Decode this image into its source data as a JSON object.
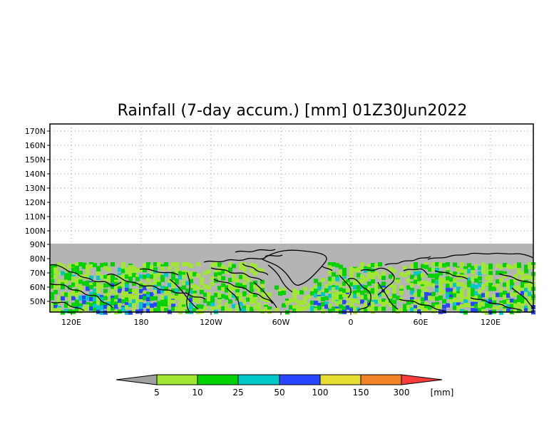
{
  "title": "Rainfall (7-day accum.) [mm] 01Z30Jun2022",
  "lat_labels": [
    "170N",
    "160N",
    "150N",
    "140N",
    "130N",
    "120N",
    "110N",
    "100N",
    "90N",
    "80N",
    "70N",
    "60N",
    "50N"
  ],
  "lon_labels": [
    "120E",
    "180",
    "120W",
    "60W",
    "0",
    "60E",
    "120E"
  ],
  "colorbar": {
    "thresholds": [
      "5",
      "10",
      "25",
      "50",
      "100",
      "150",
      "300"
    ],
    "units": "[mm]",
    "colors": [
      "#a0a0a0",
      "#a0e632",
      "#00d200",
      "#00c8c8",
      "#2846ff",
      "#e6dc32",
      "#f08228",
      "#fa3c3c"
    ]
  },
  "no_data_color": "#b4b4b4"
}
